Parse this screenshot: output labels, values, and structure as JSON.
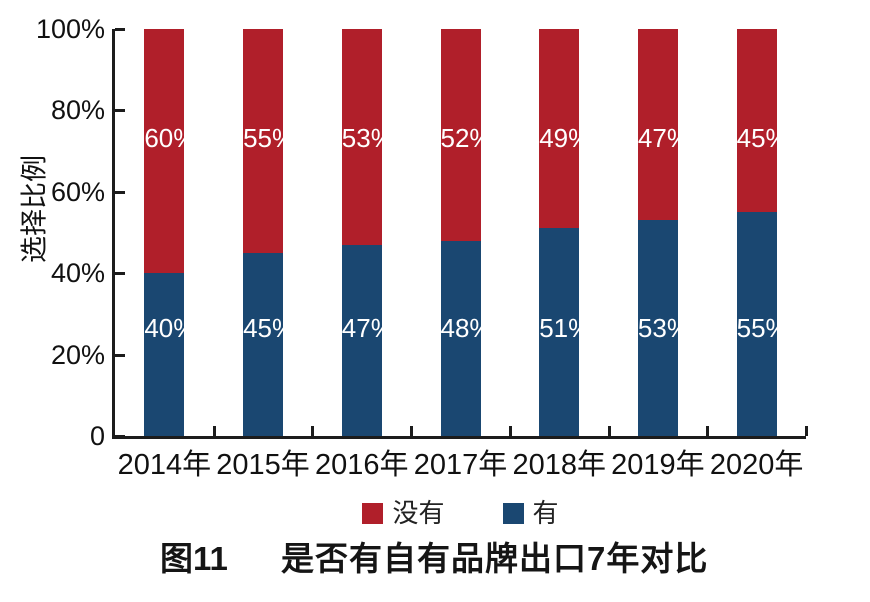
{
  "figure": {
    "figure_label": "图11",
    "title": "是否有自有品牌出口7年对比"
  },
  "chart_data": {
    "type": "bar",
    "stacked": true,
    "stacked_to_100_percent": true,
    "categories": [
      "2014年",
      "2015年",
      "2016年",
      "2017年",
      "2018年",
      "2019年",
      "2020年"
    ],
    "series": [
      {
        "name": "有",
        "color": "#1A4771",
        "values": [
          40,
          45,
          47,
          48,
          51,
          53,
          55
        ],
        "labels": [
          "40%",
          "45%",
          "47%",
          "48%",
          "51%",
          "53%",
          "55%"
        ]
      },
      {
        "name": "没有",
        "color": "#B01F2A",
        "values": [
          60,
          55,
          53,
          52,
          49,
          47,
          45
        ],
        "labels": [
          "60%",
          "55%",
          "53%",
          "52%",
          "49%",
          "47%",
          "45%"
        ]
      }
    ],
    "ylabel": "选择比例",
    "xlabel": "",
    "ylim": [
      0,
      100
    ],
    "y_ticks": [
      "0",
      "20%",
      "40%",
      "60%",
      "80%",
      "100%"
    ],
    "grid": false,
    "legend": [
      {
        "label": "没有",
        "color": "#B01F2A"
      },
      {
        "label": "有",
        "color": "#1A4771"
      }
    ],
    "legend_position": "bottom",
    "bar_label_color": "#ffffff",
    "axis_color": "#1c1c1c"
  }
}
